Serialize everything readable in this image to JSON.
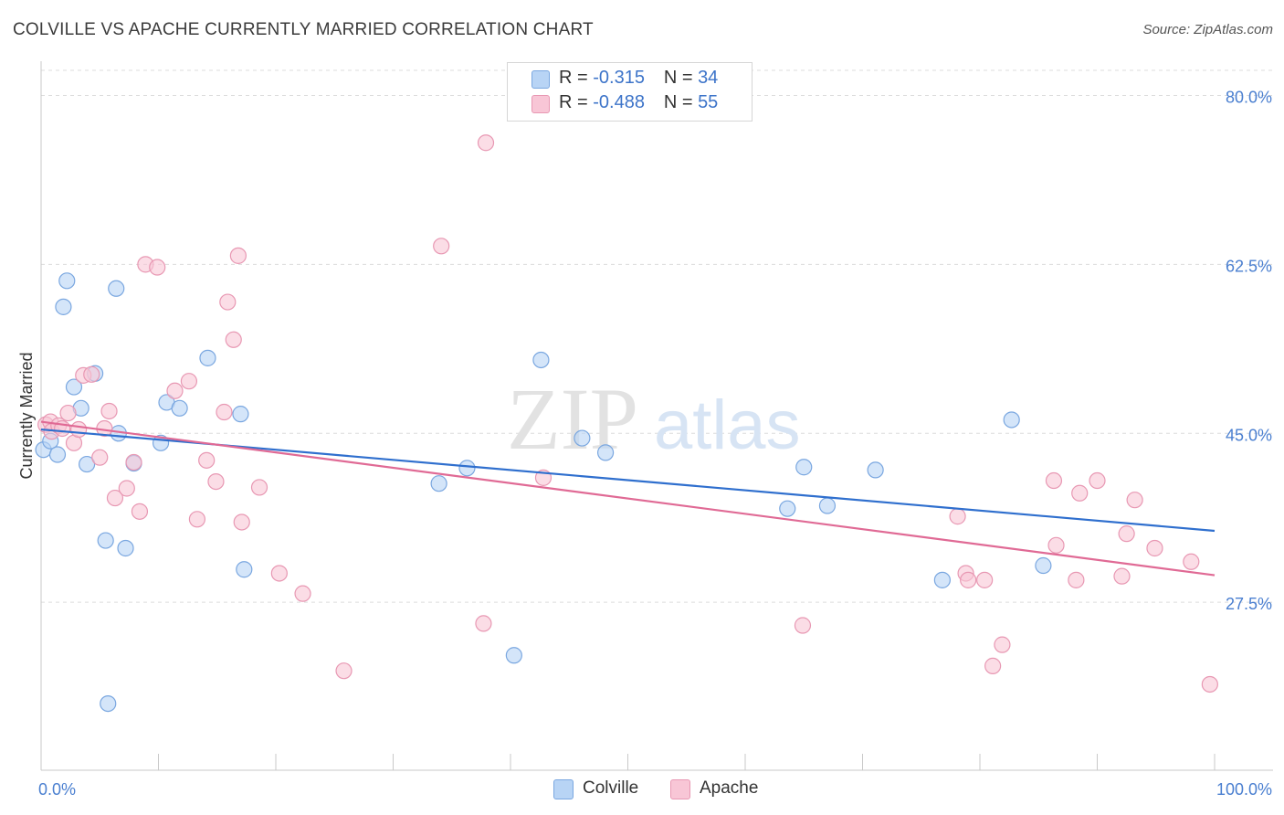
{
  "title": "COLVILLE VS APACHE CURRENTLY MARRIED CORRELATION CHART",
  "source": "Source: ZipAtlas.com",
  "watermark": {
    "zip": "ZIP",
    "atlas": "atlas"
  },
  "legend_top": {
    "rows": [
      {
        "r_label": "R =",
        "r_value": "-0.315",
        "n_label": "N =",
        "n_value": "34"
      },
      {
        "r_label": "R =",
        "r_value": "-0.488",
        "n_label": "N =",
        "n_value": "55"
      }
    ]
  },
  "colors": {
    "colville_fill": "#b8d4f5",
    "colville_stroke": "#7aa7e0",
    "colville_line": "#2f6fce",
    "apache_fill": "#f8c6d6",
    "apache_stroke": "#e898b3",
    "apache_line": "#e06a95",
    "grid": "#dcdcdc",
    "axis_text": "#4a7fd0"
  },
  "chart_data": {
    "type": "scatter",
    "title": "COLVILLE VS APACHE CURRENTLY MARRIED CORRELATION CHART",
    "xlabel": "",
    "ylabel": "Currently Married",
    "xlim": [
      0,
      100
    ],
    "ylim": [
      10.1,
      82.6
    ],
    "y_ticks": [
      80.0,
      62.5,
      45.0,
      27.5
    ],
    "y_tick_labels": [
      "80.0%",
      "62.5%",
      "45.0%",
      "27.5%"
    ],
    "x_tick_labels": [
      "0.0%",
      "100.0%"
    ],
    "legend": [
      "Colville",
      "Apache"
    ],
    "series": [
      {
        "name": "Colville",
        "r": -0.315,
        "n": 34,
        "trend": {
          "x": [
            0,
            100
          ],
          "y": [
            45.4,
            34.9
          ]
        },
        "points": [
          [
            0.2,
            43.3
          ],
          [
            0.8,
            44.2
          ],
          [
            1.4,
            42.8
          ],
          [
            1.9,
            58.1
          ],
          [
            2.2,
            60.8
          ],
          [
            2.8,
            49.8
          ],
          [
            3.4,
            47.6
          ],
          [
            3.9,
            41.8
          ],
          [
            4.6,
            51.2
          ],
          [
            5.5,
            33.9
          ],
          [
            5.7,
            17.0
          ],
          [
            6.4,
            60.0
          ],
          [
            6.6,
            45.0
          ],
          [
            7.2,
            33.1
          ],
          [
            7.9,
            41.9
          ],
          [
            10.2,
            44.0
          ],
          [
            10.7,
            48.2
          ],
          [
            11.8,
            47.6
          ],
          [
            14.2,
            52.8
          ],
          [
            17.0,
            47.0
          ],
          [
            17.3,
            30.9
          ],
          [
            33.9,
            39.8
          ],
          [
            36.3,
            41.4
          ],
          [
            40.3,
            22.0
          ],
          [
            42.6,
            52.6
          ],
          [
            46.1,
            44.5
          ],
          [
            48.1,
            43.0
          ],
          [
            63.6,
            37.2
          ],
          [
            65.0,
            41.5
          ],
          [
            67.0,
            37.5
          ],
          [
            71.1,
            41.2
          ],
          [
            76.8,
            29.8
          ],
          [
            82.7,
            46.4
          ],
          [
            85.4,
            31.3
          ]
        ]
      },
      {
        "name": "Apache",
        "r": -0.488,
        "n": 55,
        "trend": {
          "x": [
            0,
            100
          ],
          "y": [
            46.2,
            30.3
          ]
        },
        "points": [
          [
            0.4,
            45.9
          ],
          [
            0.8,
            46.2
          ],
          [
            0.9,
            45.2
          ],
          [
            1.5,
            45.8
          ],
          [
            1.8,
            45.5
          ],
          [
            2.3,
            47.1
          ],
          [
            2.8,
            44.0
          ],
          [
            3.2,
            45.4
          ],
          [
            3.6,
            51.0
          ],
          [
            4.3,
            51.1
          ],
          [
            5.0,
            42.5
          ],
          [
            5.4,
            45.5
          ],
          [
            5.8,
            47.3
          ],
          [
            6.3,
            38.3
          ],
          [
            7.3,
            39.3
          ],
          [
            7.9,
            42.0
          ],
          [
            8.4,
            36.9
          ],
          [
            8.9,
            62.5
          ],
          [
            9.9,
            62.2
          ],
          [
            11.4,
            49.4
          ],
          [
            12.6,
            50.4
          ],
          [
            13.3,
            36.1
          ],
          [
            14.1,
            42.2
          ],
          [
            14.9,
            40.0
          ],
          [
            15.6,
            47.2
          ],
          [
            15.9,
            58.6
          ],
          [
            16.4,
            54.7
          ],
          [
            16.8,
            63.4
          ],
          [
            17.1,
            35.8
          ],
          [
            18.6,
            39.4
          ],
          [
            20.3,
            30.5
          ],
          [
            22.3,
            28.4
          ],
          [
            25.8,
            20.4
          ],
          [
            34.1,
            64.4
          ],
          [
            37.7,
            25.3
          ],
          [
            37.9,
            75.1
          ],
          [
            42.8,
            40.4
          ],
          [
            64.9,
            25.1
          ],
          [
            78.1,
            36.4
          ],
          [
            78.8,
            30.5
          ],
          [
            79.0,
            29.8
          ],
          [
            80.4,
            29.8
          ],
          [
            81.1,
            20.9
          ],
          [
            81.9,
            23.1
          ],
          [
            86.3,
            40.1
          ],
          [
            86.5,
            33.4
          ],
          [
            88.2,
            29.8
          ],
          [
            88.5,
            38.8
          ],
          [
            90.0,
            40.1
          ],
          [
            92.1,
            30.2
          ],
          [
            92.5,
            34.6
          ],
          [
            93.2,
            38.1
          ],
          [
            94.9,
            33.1
          ],
          [
            98.0,
            31.7
          ],
          [
            99.6,
            19.0
          ]
        ]
      }
    ]
  }
}
